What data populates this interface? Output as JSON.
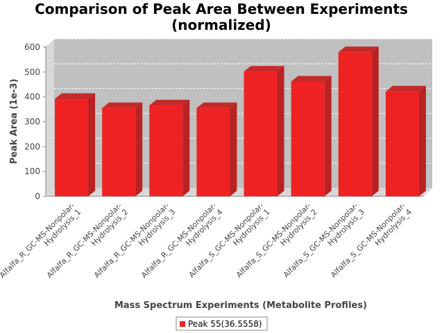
{
  "chart_data": {
    "type": "bar",
    "title_lines": [
      "Comparison of Peak Area Between Experiments",
      "(normalized)"
    ],
    "xlabel": "Mass Spectrum Experiments (Metabolite Profiles)",
    "ylabel": "Peak Area (1e-3)",
    "ylim": [
      0,
      600
    ],
    "yticks": [
      0,
      100,
      200,
      300,
      400,
      500,
      600
    ],
    "grid": true,
    "legend_position": "bottom",
    "categories": [
      [
        "Alfalfa_R_GC-MS-Nonpolar-",
        "Hydrolysis_1"
      ],
      [
        "Alfalfa_R_GC-MS-Nonpolar-",
        "Hydrolysis_2"
      ],
      [
        "Alfalfa_R_GC-MS-Nonpolar-",
        "Hydrolysis_3"
      ],
      [
        "Alfalfa_R_GC-MS-Nonpolar-",
        "Hydrolysis_4"
      ],
      [
        "Alfalfa_S_GC-MS-Nonpolar-",
        "Hydrolysis_1"
      ],
      [
        "Alfalfa_S_GC-MS-Nonpolar-",
        "Hydrolysis_2"
      ],
      [
        "Alfalfa_S_GC-MS-Nonpolar-",
        "Hydrolysis_3"
      ],
      [
        "Alfalfa_S_GC-MS-Nonpolar-",
        "Hydrolysis_4"
      ]
    ],
    "series": [
      {
        "name": "Peak 55(36.5558)",
        "color": "#ee2222",
        "values": [
          392,
          355,
          366,
          355,
          502,
          462,
          580,
          422
        ]
      }
    ]
  }
}
